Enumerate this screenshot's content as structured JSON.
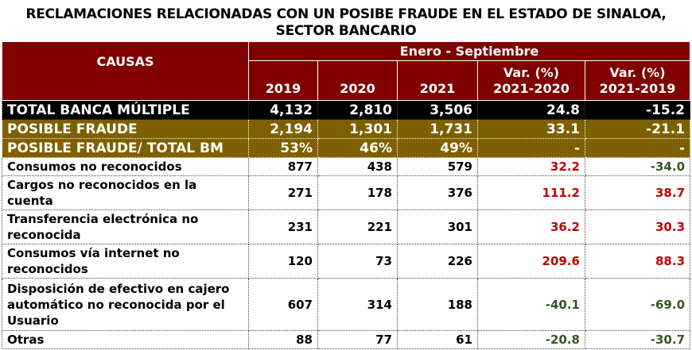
{
  "title": "RECLAMACIONES RELACIONADAS CON UN POSIBE FRAUDE EN EL ESTADO DE SINALOA, SECTOR BANCARIO",
  "header": {
    "causas": "CAUSAS",
    "period": "Enero - Septiembre",
    "y2019": "2019",
    "y2020": "2020",
    "y2021": "2021",
    "var1": "Var. (%) 2021-2020",
    "var2": "Var. (%) 2021-2019"
  },
  "colors": {
    "header": "#800000",
    "fraud": "#7f6000",
    "total": "#000000",
    "positive": "#c00000",
    "negative": "#375623"
  },
  "summary": [
    {
      "label": "TOTAL BANCA MÚLTIPLE",
      "y2019": "4,132",
      "y2020": "2,810",
      "y2021": "3,506",
      "var1": "24.8",
      "var2": "-15.2"
    },
    {
      "label": "POSIBLE FRAUDE",
      "y2019": "2,194",
      "y2020": "1,301",
      "y2021": "1,731",
      "var1": "33.1",
      "var2": "-21.1"
    },
    {
      "label": "POSIBLE FRAUDE/ TOTAL BM",
      "y2019": "53%",
      "y2020": "46%",
      "y2021": "49%",
      "var1": "-",
      "var2": "-"
    }
  ],
  "rows": [
    {
      "label": "Consumos no reconocidos",
      "y2019": "877",
      "y2020": "438",
      "y2021": "579",
      "var1": "32.2",
      "var2": "-34.0"
    },
    {
      "label": "Cargos no reconocidos en la cuenta",
      "y2019": "271",
      "y2020": "178",
      "y2021": "376",
      "var1": "111.2",
      "var2": "38.7"
    },
    {
      "label": "Transferencia electrónica no reconocida",
      "y2019": "231",
      "y2020": "221",
      "y2021": "301",
      "var1": "36.2",
      "var2": "30.3"
    },
    {
      "label": "Consumos vía internet no reconocidos",
      "y2019": "120",
      "y2020": "73",
      "y2021": "226",
      "var1": "209.6",
      "var2": "88.3"
    },
    {
      "label": "Disposición de efectivo en cajero automático no reconocida por el Usuario",
      "y2019": "607",
      "y2020": "314",
      "y2021": "188",
      "var1": "-40.1",
      "var2": "-69.0"
    },
    {
      "label": "Otras",
      "y2019": "88",
      "y2020": "77",
      "y2021": "61",
      "var1": "-20.8",
      "var2": "-30.7"
    }
  ]
}
